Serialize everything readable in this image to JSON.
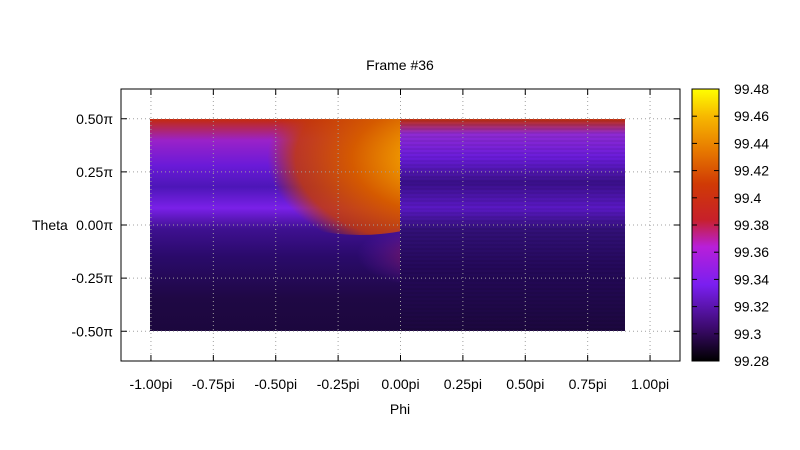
{
  "chart_data": {
    "type": "heatmap",
    "title": "Frame #36",
    "xlabel": "Phi",
    "ylabel": "Theta",
    "x_tick_labels": [
      "-1.00pi",
      "-0.75pi",
      "-0.50pi",
      "-0.25pi",
      "0.00pi",
      "0.25pi",
      "0.50pi",
      "0.75pi",
      "1.00pi"
    ],
    "x_tick_values": [
      -1.0,
      -0.75,
      -0.5,
      -0.25,
      0.0,
      0.25,
      0.5,
      0.75,
      1.0
    ],
    "xlim": [
      -1.12,
      1.12
    ],
    "y_tick_labels": [
      "-0.50π",
      "-0.25π",
      "0.00π",
      "0.25π",
      "0.50π"
    ],
    "y_tick_values": [
      -0.5,
      -0.25,
      0.0,
      0.25,
      0.5
    ],
    "ylim": [
      -0.64,
      0.64
    ],
    "data_extent": {
      "x": [
        -1.0,
        0.9
      ],
      "y": [
        -0.5,
        0.5
      ]
    },
    "grid": true,
    "colorbar": {
      "palette": "gnuplot hot (black-purple-red-orange-yellow)",
      "range": [
        99.28,
        99.48
      ],
      "tick_labels": [
        "99.28",
        "99.3",
        "99.32",
        "99.34",
        "99.36",
        "99.38",
        "99.4",
        "99.42",
        "99.44",
        "99.46",
        "99.48"
      ],
      "tick_values": [
        99.28,
        99.3,
        99.32,
        99.34,
        99.36,
        99.38,
        99.4,
        99.42,
        99.44,
        99.46,
        99.48
      ],
      "stops": [
        "#000000",
        "#3b0a6b",
        "#7a1ff0",
        "#b81fd9",
        "#c7202a",
        "#e55a00",
        "#f7a800",
        "#ffe000",
        "#ffff00"
      ]
    },
    "field_description_points": [
      {
        "x": -0.6,
        "y": 0.45,
        "value": 99.38
      },
      {
        "x": -0.1,
        "y": 0.2,
        "value": 99.45
      },
      {
        "x": -0.8,
        "y": 0.2,
        "value": 99.31
      },
      {
        "x": -0.8,
        "y": -0.4,
        "value": 99.29
      },
      {
        "x": 0.5,
        "y": 0.45,
        "value": 99.38
      },
      {
        "x": 0.5,
        "y": 0.2,
        "value": 99.3
      },
      {
        "x": 0.5,
        "y": -0.3,
        "value": 99.29
      }
    ]
  }
}
